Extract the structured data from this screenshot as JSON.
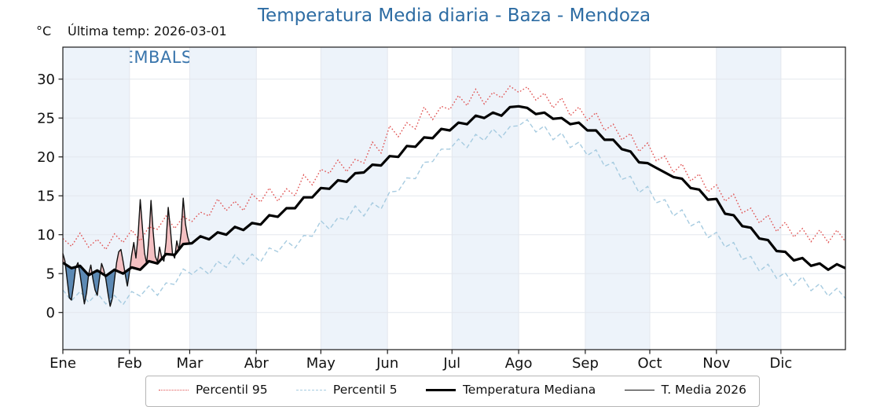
{
  "title": "Temperatura Media diaria - Baza - Mendoza",
  "header": {
    "units": "°C",
    "last_temp": "Última temp: 2026-03-01"
  },
  "watermark": "WWW.EMBALSES.NET",
  "legend": {
    "items": [
      {
        "label": "Percentil 95"
      },
      {
        "label": "Percentil 5"
      },
      {
        "label": "Temperatura Mediana"
      },
      {
        "label": "T. Media 2026"
      }
    ]
  },
  "chart_data": {
    "type": "line",
    "title": "Temperatura Media diaria - Baza - Mendoza",
    "xlabel": "",
    "ylabel": "°C",
    "ylim": [
      -4.8,
      34.2
    ],
    "yticks": [
      0,
      5,
      10,
      15,
      20,
      25,
      30
    ],
    "grid": true,
    "legend_position": "bottom",
    "x_axis": {
      "unit": "day_of_year",
      "range": [
        1,
        365
      ],
      "month_labels": [
        "Ene",
        "Feb",
        "Mar",
        "Abr",
        "May",
        "Jun",
        "Jul",
        "Ago",
        "Sep",
        "Oct",
        "Nov",
        "Dic"
      ],
      "month_start_days": [
        1,
        32,
        60,
        91,
        121,
        152,
        182,
        213,
        244,
        274,
        305,
        335
      ],
      "shaded_month_indices": [
        0,
        2,
        4,
        6,
        8,
        10
      ]
    },
    "sample_days": [
      1,
      5,
      9,
      13,
      17,
      21,
      25,
      29,
      33,
      37,
      41,
      45,
      49,
      53,
      57,
      61,
      65,
      69,
      73,
      77,
      81,
      85,
      89,
      93,
      97,
      101,
      105,
      109,
      113,
      117,
      121,
      125,
      129,
      133,
      137,
      141,
      145,
      149,
      153,
      157,
      161,
      165,
      169,
      173,
      177,
      181,
      185,
      189,
      193,
      197,
      201,
      205,
      209,
      213,
      217,
      221,
      225,
      229,
      233,
      237,
      241,
      245,
      249,
      253,
      257,
      261,
      265,
      269,
      273,
      277,
      281,
      285,
      289,
      293,
      297,
      301,
      305,
      309,
      313,
      317,
      321,
      325,
      329,
      333,
      337,
      341,
      345,
      349,
      353,
      357,
      361,
      365
    ],
    "series": [
      {
        "name": "Percentil 95",
        "style": "dotted",
        "color": "#e05252",
        "values": [
          9.5,
          8.5,
          10.2,
          8.4,
          9.4,
          8.1,
          10.1,
          9.0,
          10.6,
          9.2,
          11.0,
          10.7,
          12.4,
          10.8,
          12.3,
          11.7,
          12.9,
          12.4,
          14.6,
          13.1,
          14.3,
          13.1,
          15.2,
          14.2,
          16.0,
          14.3,
          15.9,
          15.0,
          17.7,
          16.4,
          18.4,
          17.9,
          19.6,
          18.1,
          19.7,
          19.2,
          21.9,
          20.5,
          24.0,
          22.6,
          24.4,
          23.6,
          26.4,
          24.8,
          26.5,
          26.1,
          27.9,
          26.6,
          28.7,
          26.8,
          28.3,
          27.6,
          29.1,
          28.3,
          29.0,
          27.3,
          28.2,
          26.3,
          27.6,
          25.3,
          26.4,
          24.7,
          25.7,
          23.4,
          24.2,
          22.2,
          23.0,
          20.7,
          21.8,
          19.5,
          20.1,
          18.0,
          19.1,
          16.9,
          17.8,
          15.5,
          16.4,
          14.3,
          15.2,
          12.8,
          13.4,
          11.5,
          12.5,
          10.4,
          11.6,
          9.7,
          10.8,
          9.1,
          10.6,
          9.0,
          10.6,
          9.1
        ]
      },
      {
        "name": "Percentil 5",
        "style": "dashed",
        "color": "#a6cbe0",
        "values": [
          2.9,
          1.5,
          2.7,
          1.3,
          2.5,
          1.1,
          2.2,
          1.0,
          2.7,
          2.1,
          3.4,
          2.2,
          3.8,
          3.6,
          5.6,
          4.9,
          5.8,
          4.9,
          6.6,
          5.8,
          7.4,
          6.2,
          7.5,
          6.5,
          8.3,
          7.8,
          9.2,
          8.3,
          9.9,
          9.8,
          11.8,
          10.7,
          12.2,
          11.9,
          13.7,
          12.4,
          14.1,
          13.3,
          15.5,
          15.6,
          17.3,
          17.2,
          19.3,
          19.4,
          21.0,
          21.0,
          22.3,
          21.2,
          22.9,
          22.1,
          23.6,
          22.5,
          23.9,
          24.0,
          24.8,
          23.2,
          24.0,
          22.2,
          23.1,
          21.2,
          21.9,
          20.2,
          20.9,
          18.8,
          19.3,
          17.1,
          17.5,
          15.4,
          16.2,
          14.1,
          14.5,
          12.4,
          13.2,
          11.1,
          11.7,
          9.6,
          10.3,
          8.4,
          9.0,
          6.8,
          7.2,
          5.3,
          6.2,
          4.4,
          5.1,
          3.5,
          4.6,
          2.8,
          3.7,
          2.1,
          3.1,
          1.8
        ]
      },
      {
        "name": "Temperatura Mediana",
        "style": "solid-thick",
        "color": "#000000",
        "values": [
          6.4,
          5.7,
          6.0,
          4.8,
          5.4,
          4.7,
          5.5,
          5.0,
          5.8,
          5.5,
          6.6,
          6.3,
          7.5,
          7.4,
          8.8,
          8.9,
          9.8,
          9.4,
          10.3,
          10.0,
          11.0,
          10.6,
          11.5,
          11.3,
          12.5,
          12.3,
          13.4,
          13.4,
          14.8,
          14.8,
          16.0,
          15.9,
          17.0,
          16.8,
          17.9,
          18.0,
          19.0,
          18.9,
          20.1,
          20.0,
          21.4,
          21.3,
          22.5,
          22.4,
          23.6,
          23.4,
          24.4,
          24.2,
          25.3,
          25.0,
          25.7,
          25.3,
          26.4,
          26.5,
          26.3,
          25.5,
          25.7,
          24.9,
          25.0,
          24.2,
          24.4,
          23.4,
          23.4,
          22.2,
          22.2,
          21.0,
          20.7,
          19.3,
          19.2,
          18.6,
          18.0,
          17.4,
          17.2,
          16.0,
          15.8,
          14.5,
          14.6,
          12.7,
          12.5,
          11.1,
          10.9,
          9.5,
          9.3,
          7.9,
          7.8,
          6.7,
          7.0,
          6.0,
          6.3,
          5.5,
          6.2,
          5.7
        ]
      },
      {
        "name": "T. Media 2026",
        "style": "solid-thin",
        "color": "#111111",
        "start_day": 1,
        "fill_reference": "Temperatura Mediana",
        "fill_above_color": "#f4c0c2",
        "fill_below_color": "#5d89b4",
        "values": [
          7.6,
          6.6,
          4.2,
          1.9,
          1.6,
          3.6,
          5.8,
          6.4,
          4.9,
          3.0,
          1.1,
          2.5,
          4.9,
          6.1,
          4.3,
          2.9,
          2.2,
          4.3,
          6.3,
          5.5,
          4.3,
          2.4,
          0.8,
          1.8,
          4.2,
          6.4,
          7.8,
          8.1,
          6.6,
          4.9,
          3.4,
          5.2,
          7.4,
          9.0,
          7.0,
          10.0,
          14.5,
          11.0,
          7.6,
          6.3,
          9.6,
          14.4,
          10.4,
          7.2,
          6.5,
          8.4,
          7.0,
          6.6,
          9.0,
          13.5,
          10.8,
          7.6,
          7.0,
          9.2,
          8.0,
          10.2,
          14.7,
          11.4,
          9.8,
          8.8
        ]
      }
    ],
    "colors": {
      "band": "#edf3fa",
      "grid": "#e3e7ee",
      "spine": "#1a1a1a",
      "title": "#2d6ca3",
      "watermark": "#2f6ea8"
    }
  }
}
